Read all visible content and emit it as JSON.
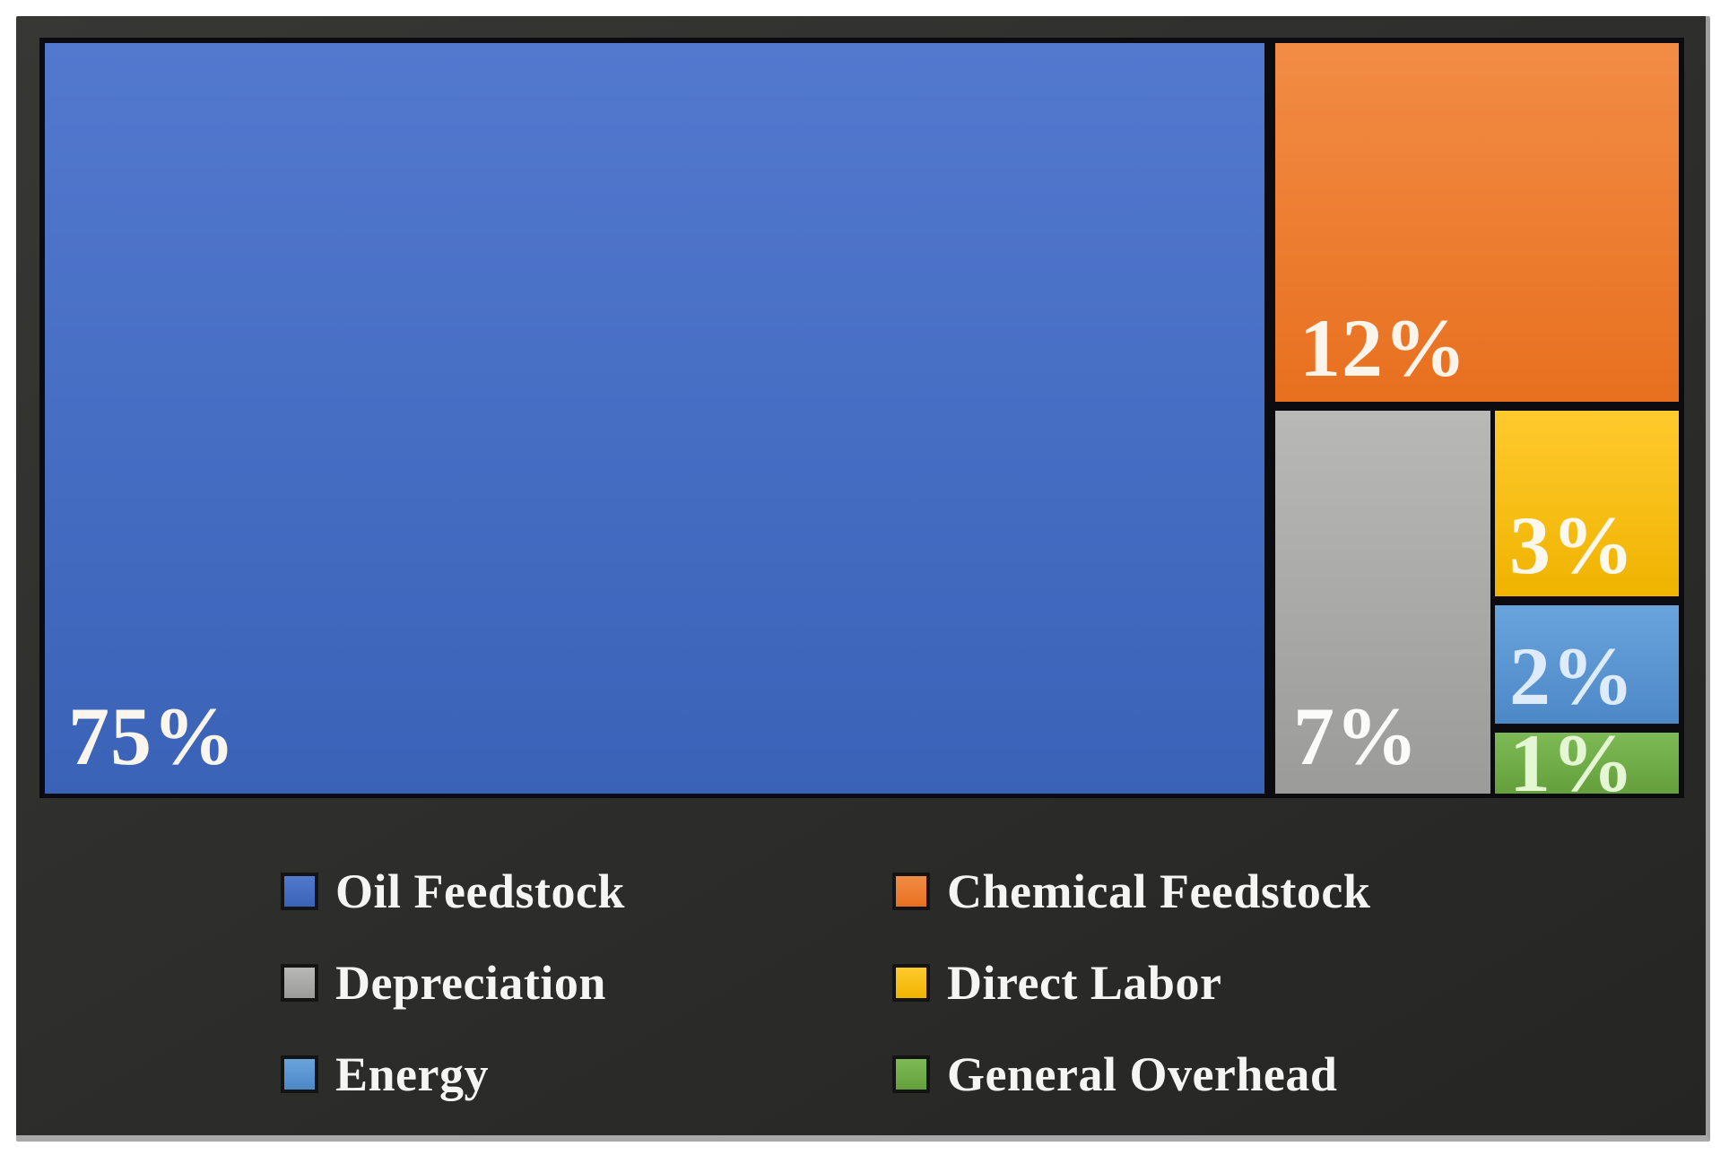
{
  "figure": {
    "panel_background": "#2e2e2c",
    "panel_bevel_color": "#a8a8a8",
    "tile_border_color": "#0b0b10",
    "page_background": "#ffffff"
  },
  "chart_data": {
    "type": "treemap",
    "title": "",
    "total": 100,
    "unit": "%",
    "legend_position": "bottom",
    "legend_columns": 2,
    "series": [
      {
        "name": "Oil Feedstock",
        "value": 75,
        "value_label": "75%",
        "color": "#4472C4",
        "color_light": "#5279CE",
        "color_dark": "#3A63B8",
        "label_color": "#FAF6EE"
      },
      {
        "name": "Chemical Feedstock",
        "value": 12,
        "value_label": "12%",
        "color": "#ED7D31",
        "color_light": "#F28C45",
        "color_dark": "#E8701F",
        "label_color": "#FBF4EA"
      },
      {
        "name": "Depreciation",
        "value": 7,
        "value_label": "7%",
        "color": "#A5A5A5",
        "color_light": "#B8B8B6",
        "color_dark": "#9B9B99",
        "label_color": "#FBFBF9"
      },
      {
        "name": "Direct Labor",
        "value": 3,
        "value_label": "3%",
        "color": "#FFC000",
        "color_light": "#FFCA2D",
        "color_dark": "#EFB300",
        "label_color": "#FCF8EE"
      },
      {
        "name": "Energy",
        "value": 2,
        "value_label": "2%",
        "color": "#5B9BD5",
        "color_light": "#69A4DD",
        "color_dark": "#4D88C7",
        "label_color": "#DDEBFB"
      },
      {
        "name": "General Overhead",
        "value": 1,
        "value_label": "1%",
        "color": "#70AD47",
        "color_light": "#7DBA55",
        "color_dark": "#649F3B",
        "label_color": "#E4F6D4"
      }
    ]
  }
}
